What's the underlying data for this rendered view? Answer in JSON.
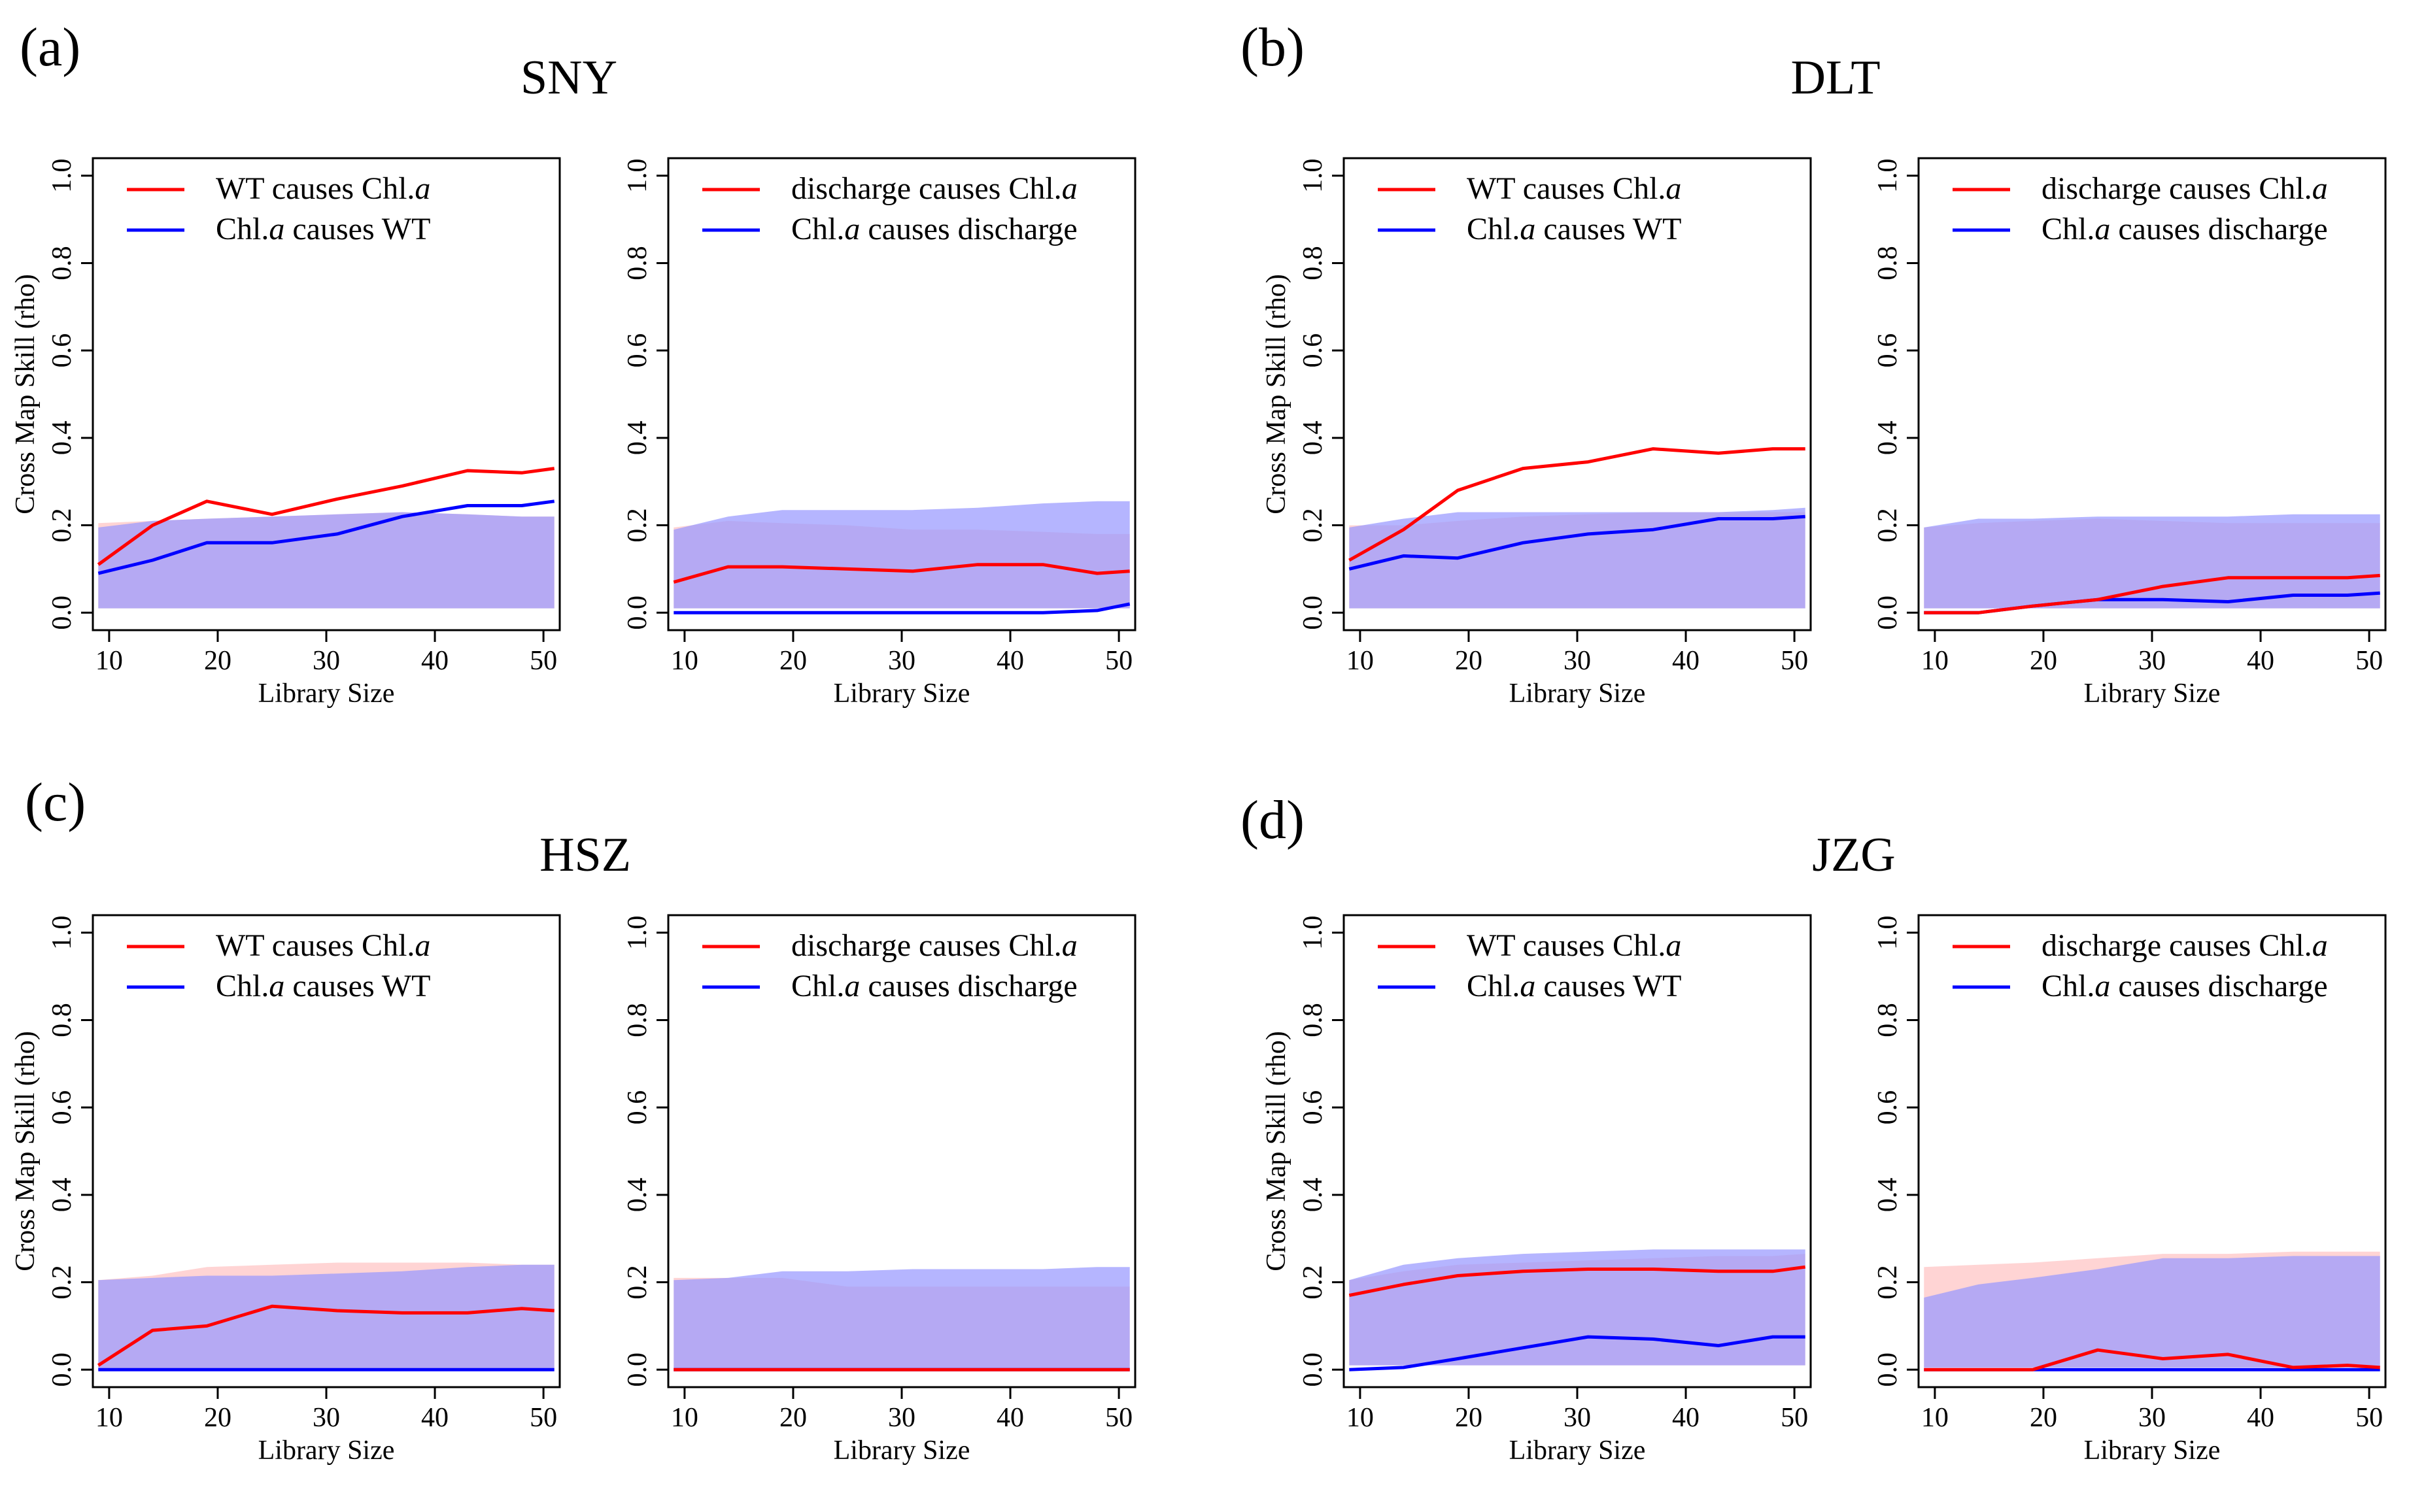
{
  "colors": {
    "red": "#ff0000",
    "blue": "#0000ff",
    "red_band": "#ffcccc",
    "blue_band": "#9999ff",
    "overlap": "#b3a3f2",
    "frame": "#000000"
  },
  "axes": {
    "xlabel": "Library Size",
    "ylabel": "Cross Map Skill (rho)",
    "xticks": [
      10,
      20,
      30,
      40,
      50
    ],
    "yticks": [
      0.0,
      0.2,
      0.4,
      0.6,
      0.8,
      1.0
    ],
    "yticklabels": [
      "0.0",
      "0.2",
      "0.4",
      "0.6",
      "0.8",
      "1.0"
    ],
    "xlim": [
      8.5,
      51.5
    ],
    "ylim": [
      -0.04,
      1.04
    ]
  },
  "chart_data": [
    {
      "panel_label": "(a)",
      "site": "SNY",
      "subplots": [
        {
          "type": "line",
          "legend": [
            {
              "prefix": "WT",
              "mid": "causes",
              "suffix_text": "Chl.",
              "suffix_italic": "a",
              "color": "red"
            },
            {
              "prefix": "Chl.",
              "prefix_italic": "a",
              "mid": "causes",
              "suffix_text": "WT",
              "color": "blue"
            }
          ],
          "x": [
            9,
            14,
            19,
            25,
            31,
            37,
            43,
            48,
            51
          ],
          "series": [
            {
              "name": "WT causes Chl.a",
              "color": "red",
              "values": [
                0.11,
                0.2,
                0.255,
                0.225,
                0.26,
                0.29,
                0.325,
                0.32,
                0.33
              ],
              "band_lower": [
                0.01,
                0.01,
                0.01,
                0.01,
                0.01,
                0.01,
                0.01,
                0.01,
                0.01
              ],
              "band_upper": [
                0.205,
                0.21,
                0.215,
                0.22,
                0.225,
                0.23,
                0.225,
                0.22,
                0.22
              ]
            },
            {
              "name": "Chl.a causes WT",
              "color": "blue",
              "values": [
                0.09,
                0.12,
                0.16,
                0.16,
                0.18,
                0.22,
                0.245,
                0.245,
                0.255
              ],
              "band_lower": [
                0.01,
                0.01,
                0.01,
                0.01,
                0.01,
                0.01,
                0.01,
                0.01,
                0.01
              ],
              "band_upper": [
                0.195,
                0.21,
                0.215,
                0.22,
                0.225,
                0.23,
                0.225,
                0.22,
                0.22
              ]
            }
          ]
        },
        {
          "type": "line",
          "legend": [
            {
              "prefix": "discharge",
              "mid": "causes",
              "suffix_text": "Chl.",
              "suffix_italic": "a",
              "color": "red"
            },
            {
              "prefix": "Chl.",
              "prefix_italic": "a",
              "mid": "causes",
              "suffix_text": "discharge",
              "color": "blue"
            }
          ],
          "x": [
            9,
            14,
            19,
            25,
            31,
            37,
            43,
            48,
            51
          ],
          "series": [
            {
              "name": "discharge causes Chl.a",
              "color": "red",
              "values": [
                0.07,
                0.105,
                0.105,
                0.1,
                0.095,
                0.11,
                0.11,
                0.09,
                0.095
              ],
              "band_lower": [
                0.01,
                0.01,
                0.01,
                0.01,
                0.01,
                0.01,
                0.01,
                0.01,
                0.01
              ],
              "band_upper": [
                0.195,
                0.21,
                0.205,
                0.2,
                0.19,
                0.19,
                0.185,
                0.18,
                0.18
              ]
            },
            {
              "name": "Chl.a causes discharge",
              "color": "blue",
              "values": [
                0.0,
                0.0,
                0.0,
                0.0,
                0.0,
                0.0,
                0.0,
                0.005,
                0.02
              ],
              "band_lower": [
                0.01,
                0.01,
                0.01,
                0.01,
                0.01,
                0.01,
                0.01,
                0.01,
                0.01
              ],
              "band_upper": [
                0.19,
                0.22,
                0.235,
                0.235,
                0.235,
                0.24,
                0.25,
                0.255,
                0.255
              ]
            }
          ]
        }
      ]
    },
    {
      "panel_label": "(b)",
      "site": "DLT",
      "subplots": [
        {
          "type": "line",
          "legend": [
            {
              "prefix": "WT",
              "mid": "causes",
              "suffix_text": "Chl.",
              "suffix_italic": "a",
              "color": "red"
            },
            {
              "prefix": "Chl.",
              "prefix_italic": "a",
              "mid": "causes",
              "suffix_text": "WT",
              "color": "blue"
            }
          ],
          "x": [
            9,
            14,
            19,
            25,
            31,
            37,
            43,
            48,
            51
          ],
          "series": [
            {
              "name": "WT causes Chl.a",
              "color": "red",
              "values": [
                0.12,
                0.19,
                0.28,
                0.33,
                0.345,
                0.375,
                0.365,
                0.375,
                0.375
              ],
              "band_lower": [
                0.01,
                0.01,
                0.01,
                0.01,
                0.01,
                0.01,
                0.01,
                0.01,
                0.01
              ],
              "band_upper": [
                0.2,
                0.2,
                0.21,
                0.22,
                0.225,
                0.23,
                0.23,
                0.23,
                0.23
              ]
            },
            {
              "name": "Chl.a causes WT",
              "color": "blue",
              "values": [
                0.1,
                0.13,
                0.125,
                0.16,
                0.18,
                0.19,
                0.215,
                0.215,
                0.22
              ],
              "band_lower": [
                0.01,
                0.01,
                0.01,
                0.01,
                0.01,
                0.01,
                0.01,
                0.01,
                0.01
              ],
              "band_upper": [
                0.195,
                0.215,
                0.23,
                0.23,
                0.23,
                0.23,
                0.23,
                0.235,
                0.24
              ]
            }
          ]
        },
        {
          "type": "line",
          "legend": [
            {
              "prefix": "discharge",
              "mid": "causes",
              "suffix_text": "Chl.",
              "suffix_italic": "a",
              "color": "red"
            },
            {
              "prefix": "Chl.",
              "prefix_italic": "a",
              "mid": "causes",
              "suffix_text": "discharge",
              "color": "blue"
            }
          ],
          "x": [
            9,
            14,
            19,
            25,
            31,
            37,
            43,
            48,
            51
          ],
          "series": [
            {
              "name": "discharge causes Chl.a",
              "color": "red",
              "values": [
                0.0,
                0.0,
                0.015,
                0.03,
                0.06,
                0.08,
                0.08,
                0.08,
                0.085
              ],
              "band_lower": [
                0.01,
                0.01,
                0.01,
                0.01,
                0.01,
                0.01,
                0.01,
                0.01,
                0.01
              ],
              "band_upper": [
                0.195,
                0.205,
                0.21,
                0.215,
                0.21,
                0.205,
                0.205,
                0.205,
                0.205
              ]
            },
            {
              "name": "Chl.a causes discharge",
              "color": "blue",
              "values": [
                0.0,
                0.0,
                0.015,
                0.03,
                0.03,
                0.025,
                0.04,
                0.04,
                0.045
              ],
              "band_lower": [
                0.01,
                0.01,
                0.01,
                0.01,
                0.01,
                0.01,
                0.01,
                0.01,
                0.01
              ],
              "band_upper": [
                0.195,
                0.215,
                0.215,
                0.22,
                0.22,
                0.22,
                0.225,
                0.225,
                0.225
              ]
            }
          ]
        }
      ]
    },
    {
      "panel_label": "(c)",
      "site": "HSZ",
      "subplots": [
        {
          "type": "line",
          "legend": [
            {
              "prefix": "WT",
              "mid": "causes",
              "suffix_text": "Chl.",
              "suffix_italic": "a",
              "color": "red"
            },
            {
              "prefix": "Chl.",
              "prefix_italic": "a",
              "mid": "causes",
              "suffix_text": "WT",
              "color": "blue"
            }
          ],
          "x": [
            9,
            14,
            19,
            25,
            31,
            37,
            43,
            48,
            51
          ],
          "series": [
            {
              "name": "WT causes Chl.a",
              "color": "red",
              "values": [
                0.01,
                0.09,
                0.1,
                0.145,
                0.135,
                0.13,
                0.13,
                0.14,
                0.135
              ],
              "band_lower": [
                0.0,
                0.0,
                0.0,
                0.0,
                0.0,
                0.0,
                0.0,
                0.0,
                0.0
              ],
              "band_upper": [
                0.205,
                0.215,
                0.235,
                0.24,
                0.245,
                0.245,
                0.245,
                0.24,
                0.24
              ]
            },
            {
              "name": "Chl.a causes WT",
              "color": "blue",
              "values": [
                0.0,
                0.0,
                0.0,
                0.0,
                0.0,
                0.0,
                0.0,
                0.0,
                0.0
              ],
              "band_lower": [
                0.0,
                0.0,
                0.0,
                0.0,
                0.0,
                0.0,
                0.0,
                0.0,
                0.0
              ],
              "band_upper": [
                0.205,
                0.21,
                0.215,
                0.215,
                0.22,
                0.225,
                0.235,
                0.24,
                0.24
              ]
            }
          ]
        },
        {
          "type": "line",
          "legend": [
            {
              "prefix": "discharge",
              "mid": "causes",
              "suffix_text": "Chl.",
              "suffix_italic": "a",
              "color": "red"
            },
            {
              "prefix": "Chl.",
              "prefix_italic": "a",
              "mid": "causes",
              "suffix_text": "discharge",
              "color": "blue"
            }
          ],
          "x": [
            9,
            14,
            19,
            25,
            31,
            37,
            43,
            48,
            51
          ],
          "series": [
            {
              "name": "discharge causes Chl.a",
              "color": "red",
              "values": [
                0.0,
                0.0,
                0.0,
                0.0,
                0.0,
                0.0,
                0.0,
                0.0,
                0.0
              ],
              "band_lower": [
                0.0,
                0.0,
                0.0,
                0.0,
                0.0,
                0.0,
                0.0,
                0.0,
                0.0
              ],
              "band_upper": [
                0.21,
                0.21,
                0.21,
                0.19,
                0.19,
                0.19,
                0.19,
                0.19,
                0.19
              ]
            },
            {
              "name": "Chl.a causes discharge",
              "color": "blue",
              "values": [
                0.0,
                0.0,
                0.0,
                0.0,
                0.0,
                0.0,
                0.0,
                0.0,
                0.0
              ],
              "band_lower": [
                0.0,
                0.0,
                0.0,
                0.0,
                0.0,
                0.0,
                0.0,
                0.0,
                0.0
              ],
              "band_upper": [
                0.205,
                0.21,
                0.225,
                0.225,
                0.23,
                0.23,
                0.23,
                0.235,
                0.235
              ]
            }
          ]
        }
      ]
    },
    {
      "panel_label": "(d)",
      "site": "JZG",
      "subplots": [
        {
          "type": "line",
          "legend": [
            {
              "prefix": "WT",
              "mid": "causes",
              "suffix_text": "Chl.",
              "suffix_italic": "a",
              "color": "red"
            },
            {
              "prefix": "Chl.",
              "prefix_italic": "a",
              "mid": "causes",
              "suffix_text": "WT",
              "color": "blue"
            }
          ],
          "x": [
            9,
            14,
            19,
            25,
            31,
            37,
            43,
            48,
            51
          ],
          "series": [
            {
              "name": "WT causes Chl.a",
              "color": "red",
              "values": [
                0.17,
                0.195,
                0.215,
                0.225,
                0.23,
                0.23,
                0.225,
                0.225,
                0.235
              ],
              "band_lower": [
                0.01,
                0.01,
                0.01,
                0.01,
                0.01,
                0.01,
                0.01,
                0.01,
                0.01
              ],
              "band_upper": [
                0.205,
                0.225,
                0.24,
                0.245,
                0.25,
                0.255,
                0.26,
                0.26,
                0.265
              ]
            },
            {
              "name": "Chl.a causes WT",
              "color": "blue",
              "values": [
                0.0,
                0.005,
                0.025,
                0.05,
                0.075,
                0.07,
                0.055,
                0.075,
                0.075
              ],
              "band_lower": [
                0.01,
                0.01,
                0.01,
                0.01,
                0.01,
                0.01,
                0.01,
                0.01,
                0.01
              ],
              "band_upper": [
                0.205,
                0.24,
                0.255,
                0.265,
                0.27,
                0.275,
                0.275,
                0.275,
                0.275
              ]
            }
          ]
        },
        {
          "type": "line",
          "legend": [
            {
              "prefix": "discharge",
              "mid": "causes",
              "suffix_text": "Chl.",
              "suffix_italic": "a",
              "color": "red"
            },
            {
              "prefix": "Chl.",
              "prefix_italic": "a",
              "mid": "causes",
              "suffix_text": "discharge",
              "color": "blue"
            }
          ],
          "x": [
            9,
            14,
            19,
            25,
            31,
            37,
            43,
            48,
            51
          ],
          "series": [
            {
              "name": "discharge causes Chl.a",
              "color": "red",
              "values": [
                0.0,
                0.0,
                0.0,
                0.045,
                0.025,
                0.035,
                0.005,
                0.01,
                0.005
              ],
              "band_lower": [
                0.005,
                0.005,
                0.005,
                0.005,
                0.005,
                0.005,
                0.005,
                0.005,
                0.005
              ],
              "band_upper": [
                0.235,
                0.24,
                0.245,
                0.255,
                0.265,
                0.265,
                0.27,
                0.27,
                0.27
              ]
            },
            {
              "name": "Chl.a causes discharge",
              "color": "blue",
              "values": [
                0.0,
                0.0,
                0.0,
                0.0,
                0.0,
                0.0,
                0.0,
                0.0,
                0.0
              ],
              "band_lower": [
                0.005,
                0.005,
                0.005,
                0.005,
                0.005,
                0.005,
                0.005,
                0.005,
                0.005
              ],
              "band_upper": [
                0.165,
                0.195,
                0.21,
                0.23,
                0.255,
                0.255,
                0.26,
                0.26,
                0.26
              ]
            }
          ]
        }
      ]
    }
  ]
}
